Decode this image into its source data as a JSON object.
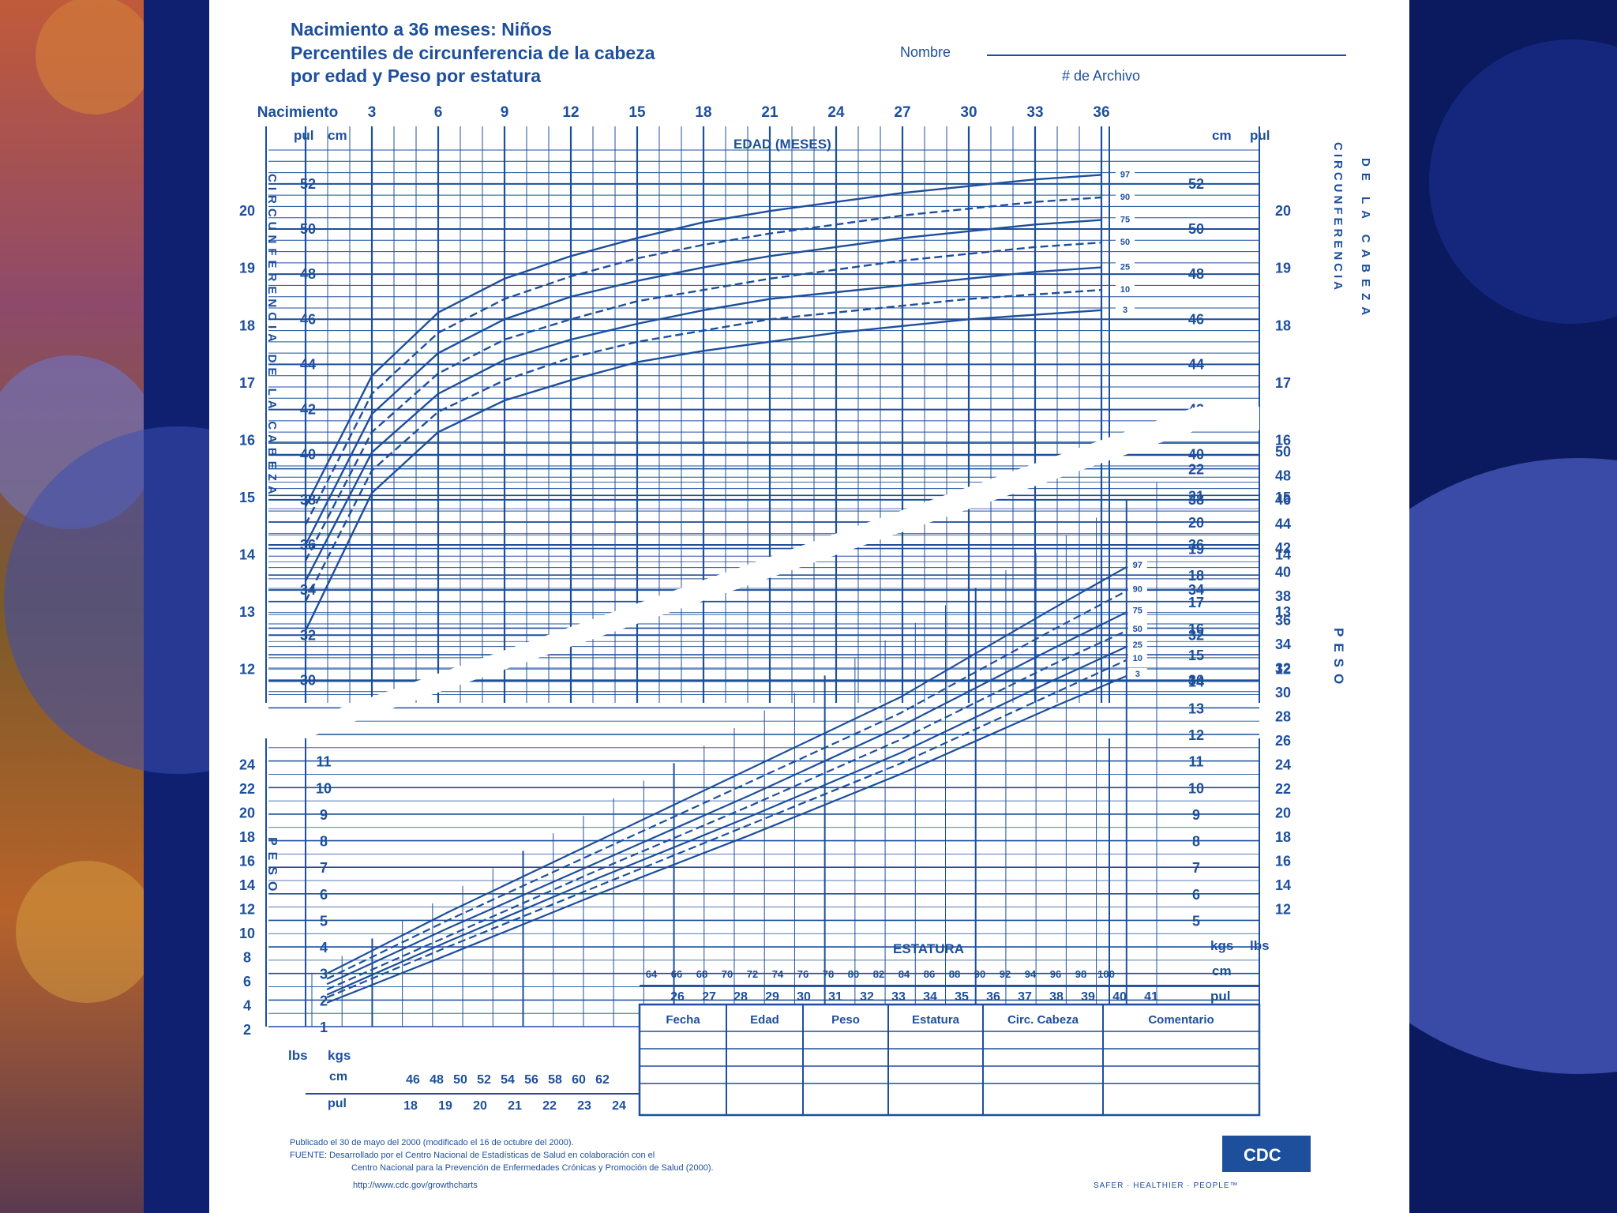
{
  "header": {
    "title_line1": "Nacimiento a 36 meses: Niños",
    "title_line2": "Percentiles de circunferencia de la cabeza",
    "title_line3": "por edad y Peso por estatura",
    "nombre_label": "Nombre",
    "archivo_label": "# de Archivo"
  },
  "labels": {
    "pul": "pul",
    "cm": "cm",
    "kgs": "kgs",
    "lbs": "lbs",
    "edad": "EDAD (MESES)",
    "estatura": "ESTATURA",
    "head_left_vertical": "CIRCUNFERENCIA DE LA CABEZA",
    "head_right_vertical_a": "CIRCUNFERENCIA",
    "head_right_vertical_b": "DE LA CABEZA",
    "peso_vertical": "PESO"
  },
  "table": {
    "headers": [
      "Fecha",
      "Edad",
      "Peso",
      "Estatura",
      "Circ. Cabeza",
      "Comentario"
    ]
  },
  "footer": {
    "line1": "Publicado el 30 de mayo del 2000 (modificado el 16 de octubre del 2000).",
    "line2": "FUENTE: Desarrollado por el Centro Nacional de Estadísticas de Salud en colaboración con el",
    "line3": "Centro Nacional para la Prevención de Enfermedades Crónicas y Promoción de Salud (2000).",
    "line4": "http://www.cdc.gov/growthcharts",
    "logo": "CDC",
    "tagline": "SAFER · HEALTHIER · PEOPLE™"
  },
  "chart_data": [
    {
      "type": "line",
      "title": "Percentiles de circunferencia de la cabeza por edad",
      "xlabel": "EDAD (MESES)",
      "ylabel": "CIRCUNFERENCIA DE LA CABEZA",
      "x_ticks": [
        "Nacimiento",
        "3",
        "6",
        "9",
        "12",
        "15",
        "18",
        "21",
        "24",
        "27",
        "30",
        "33",
        "36"
      ],
      "x_tick_values": [
        0,
        3,
        6,
        9,
        12,
        15,
        18,
        21,
        24,
        27,
        30,
        33,
        36
      ],
      "xlim": [
        0,
        36
      ],
      "ylim": [
        29,
        53.5
      ],
      "y_ticks_cm": [
        30,
        32,
        34,
        36,
        38,
        40,
        42,
        44,
        46,
        48,
        50,
        52
      ],
      "y_ticks_in": [
        "12",
        "13",
        "14",
        "15",
        "16",
        "17",
        "18",
        "19",
        "20"
      ],
      "grid": true,
      "legend": "percentile labels at right end",
      "x": [
        0,
        3,
        6,
        9,
        12,
        15,
        18,
        21,
        24,
        27,
        30,
        33,
        36
      ],
      "series": [
        {
          "name": "97",
          "values": [
            37.7,
            43.5,
            46.3,
            47.8,
            48.8,
            49.6,
            50.3,
            50.8,
            51.2,
            51.6,
            51.9,
            52.2,
            52.4
          ]
        },
        {
          "name": "90",
          "values": [
            36.9,
            42.7,
            45.4,
            46.9,
            47.9,
            48.7,
            49.3,
            49.8,
            50.2,
            50.6,
            50.9,
            51.2,
            51.4
          ]
        },
        {
          "name": "75",
          "values": [
            36.0,
            41.8,
            44.5,
            46.0,
            47.0,
            47.7,
            48.3,
            48.8,
            49.2,
            49.6,
            49.9,
            50.2,
            50.4
          ]
        },
        {
          "name": "50",
          "values": [
            35.3,
            41.0,
            43.6,
            45.1,
            46.0,
            46.8,
            47.3,
            47.8,
            48.2,
            48.6,
            48.9,
            49.2,
            49.4
          ]
        },
        {
          "name": "25",
          "values": [
            34.4,
            40.1,
            42.7,
            44.2,
            45.1,
            45.8,
            46.4,
            46.9,
            47.2,
            47.5,
            47.8,
            48.1,
            48.3
          ]
        },
        {
          "name": "10",
          "values": [
            33.5,
            39.3,
            41.9,
            43.3,
            44.3,
            45.0,
            45.5,
            46.0,
            46.3,
            46.6,
            46.9,
            47.1,
            47.3
          ]
        },
        {
          "name": "3",
          "values": [
            32.2,
            38.3,
            41.0,
            42.4,
            43.3,
            44.1,
            44.6,
            45.0,
            45.4,
            45.7,
            46.0,
            46.2,
            46.4
          ]
        }
      ]
    },
    {
      "type": "line",
      "title": "Peso por estatura",
      "xlabel": "ESTATURA",
      "ylabel": "PESO",
      "xlim": [
        46,
        102
      ],
      "ylim": [
        1,
        23
      ],
      "x_ticks_cm_lower": [
        "46",
        "48",
        "50",
        "52",
        "54",
        "56",
        "58",
        "60",
        "62"
      ],
      "x_ticks_in_lower": [
        "18",
        "19",
        "20",
        "21",
        "22",
        "23",
        "24"
      ],
      "x_ticks_cm_upper": [
        "64",
        "66",
        "68",
        "70",
        "72",
        "74",
        "76",
        "78",
        "80",
        "82",
        "84",
        "86",
        "88",
        "90",
        "92",
        "94",
        "96",
        "98",
        "100"
      ],
      "x_ticks_in_upper": [
        "26",
        "27",
        "28",
        "29",
        "30",
        "31",
        "32",
        "33",
        "34",
        "35",
        "36",
        "37",
        "38",
        "39",
        "40",
        "41"
      ],
      "y_ticks_kg_left": [
        "1",
        "2",
        "3",
        "4",
        "5",
        "6",
        "7",
        "8",
        "9",
        "10",
        "11"
      ],
      "y_ticks_lb_left": [
        "2",
        "4",
        "6",
        "8",
        "10",
        "12",
        "14",
        "16",
        "18",
        "20",
        "22",
        "24"
      ],
      "y_ticks_kg_right": [
        "5",
        "6",
        "7",
        "8",
        "9",
        "10",
        "11",
        "12",
        "13",
        "14",
        "15",
        "16",
        "17",
        "18",
        "19",
        "20",
        "21",
        "22"
      ],
      "y_ticks_lb_right": [
        "12",
        "14",
        "16",
        "18",
        "20",
        "22",
        "24",
        "26",
        "28",
        "30",
        "32",
        "34",
        "36",
        "38",
        "40",
        "42",
        "44",
        "46",
        "48",
        "50"
      ],
      "grid": true,
      "legend": "percentile labels at right end",
      "x": [
        47,
        55,
        65,
        75,
        85,
        95,
        100
      ],
      "series": [
        {
          "name": "97",
          "values": [
            3.0,
            5.3,
            8.0,
            10.7,
            13.4,
            16.7,
            18.3
          ]
        },
        {
          "name": "90",
          "values": [
            2.8,
            5.0,
            7.6,
            10.2,
            12.8,
            15.9,
            17.4
          ]
        },
        {
          "name": "75",
          "values": [
            2.6,
            4.7,
            7.2,
            9.7,
            12.3,
            15.2,
            16.6
          ]
        },
        {
          "name": "50",
          "values": [
            2.4,
            4.4,
            6.9,
            9.3,
            11.8,
            14.6,
            15.9
          ]
        },
        {
          "name": "25",
          "values": [
            2.2,
            4.2,
            6.6,
            8.9,
            11.3,
            14.0,
            15.3
          ]
        },
        {
          "name": "10",
          "values": [
            2.1,
            4.0,
            6.3,
            8.6,
            10.9,
            13.5,
            14.8
          ]
        },
        {
          "name": "3",
          "values": [
            1.9,
            3.7,
            6.0,
            8.2,
            10.5,
            13.0,
            14.2
          ]
        }
      ]
    }
  ]
}
